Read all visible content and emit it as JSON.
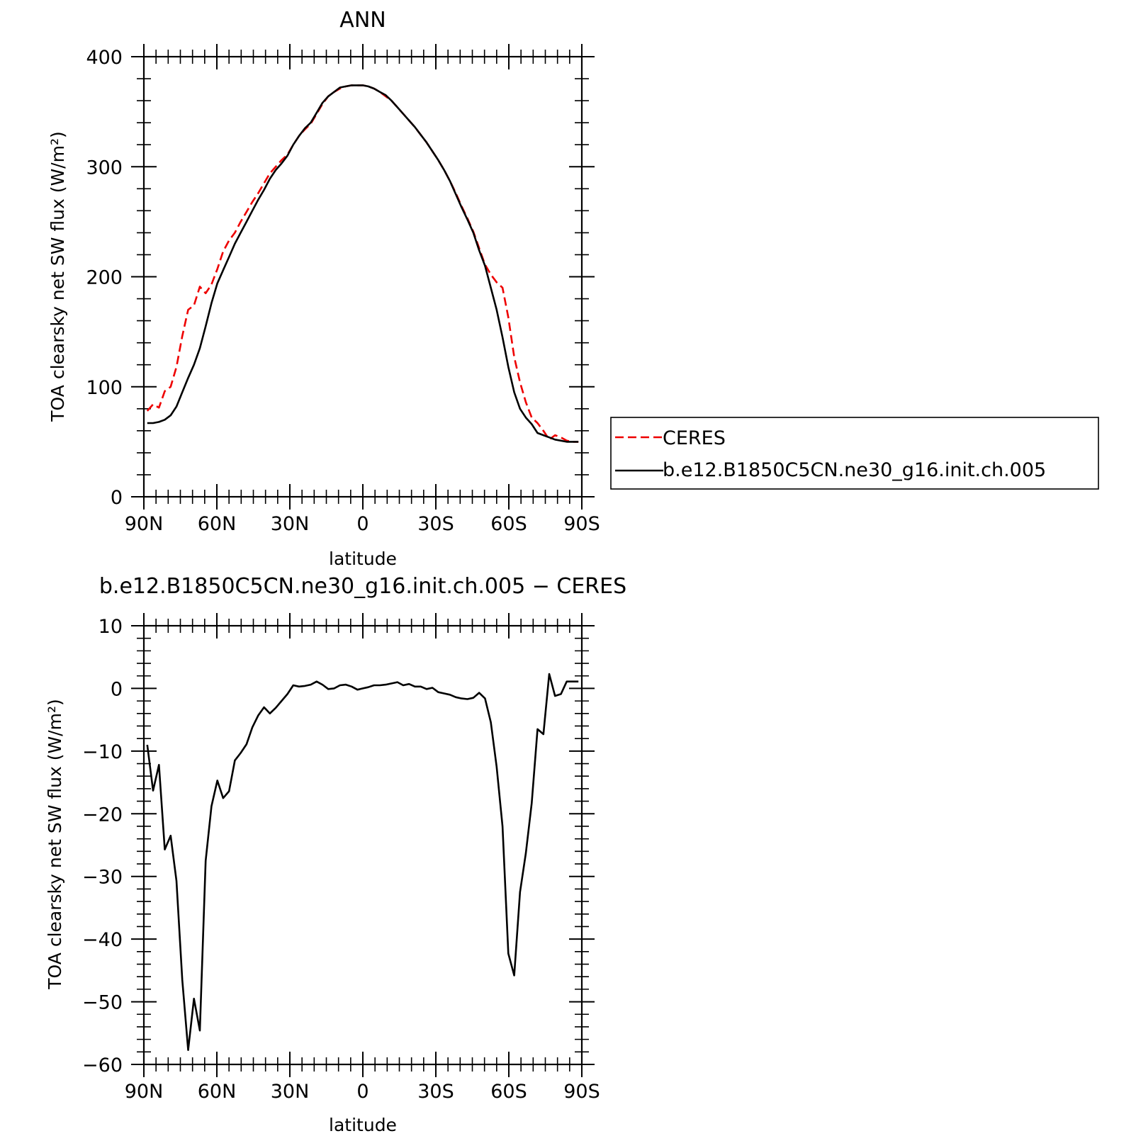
{
  "chart_data": [
    {
      "type": "line",
      "title": "ANN",
      "xlabel": "latitude",
      "ylabel": "TOA clearsky net SW flux (W/m²)",
      "ylim": [
        0,
        400
      ],
      "yticks": [
        0,
        100,
        200,
        300,
        400
      ],
      "xlim": [
        90,
        -90
      ],
      "xticks": [
        90,
        60,
        30,
        0,
        -30,
        -60,
        -90
      ],
      "xtick_labels": [
        "90N",
        "60N",
        "30N",
        "0",
        "30S",
        "60S",
        "90S"
      ],
      "legend_position": "right",
      "series": [
        {
          "name": "CERES",
          "color": "#ee0000",
          "dash": "dashed",
          "x": [
            88.6,
            86.2,
            83.8,
            81.4,
            79.0,
            76.6,
            74.2,
            71.8,
            69.4,
            67.0,
            64.6,
            62.2,
            59.8,
            57.4,
            55.0,
            52.6,
            50.2,
            47.8,
            45.4,
            43.0,
            40.6,
            38.2,
            35.8,
            33.4,
            31.0,
            28.6,
            26.2,
            23.8,
            21.4,
            19.0,
            16.6,
            14.2,
            11.8,
            9.4,
            7.0,
            4.6,
            2.2,
            0.0,
            -2.2,
            -4.6,
            -7.0,
            -9.4,
            -11.8,
            -14.2,
            -16.6,
            -19.0,
            -21.4,
            -23.8,
            -26.2,
            -28.6,
            -31.0,
            -33.4,
            -35.8,
            -38.2,
            -40.6,
            -43.0,
            -45.4,
            -47.8,
            -50.2,
            -52.6,
            -55.0,
            -57.4,
            -59.8,
            -62.2,
            -64.6,
            -67.0,
            -69.4,
            -71.8,
            -74.2,
            -76.6,
            -79.0,
            -81.4,
            -83.8,
            -86.2,
            -88.6
          ],
          "y": [
            78,
            84,
            81,
            96,
            100,
            118,
            146,
            170,
            174,
            191,
            185,
            193,
            207,
            223,
            233,
            240,
            250,
            259,
            268,
            276,
            285,
            294,
            300,
            306,
            311,
            320,
            328,
            334,
            339,
            348,
            357,
            364,
            368,
            371,
            373,
            374,
            374,
            374,
            373,
            371,
            368,
            364,
            360,
            354,
            348,
            342,
            336,
            329,
            322,
            314,
            306,
            297,
            287,
            276,
            264,
            253,
            241,
            226,
            211,
            202,
            195,
            190,
            163,
            127,
            104,
            86,
            72,
            67,
            60,
            52,
            56,
            54,
            51,
            50,
            50
          ]
        },
        {
          "name": "b.e12.B1850C5CN.ne30_g16.init.ch.005",
          "color": "#000000",
          "dash": "solid",
          "x": [
            88.6,
            86.2,
            83.8,
            81.4,
            79.0,
            76.6,
            74.2,
            71.8,
            69.4,
            67.0,
            64.6,
            62.2,
            59.8,
            57.4,
            55.0,
            52.6,
            50.2,
            47.8,
            45.4,
            43.0,
            40.6,
            38.2,
            35.8,
            33.4,
            31.0,
            28.6,
            26.2,
            23.8,
            21.4,
            19.0,
            16.6,
            14.2,
            11.8,
            9.4,
            7.0,
            4.6,
            2.2,
            0.0,
            -2.2,
            -4.6,
            -7.0,
            -9.4,
            -11.8,
            -14.2,
            -16.6,
            -19.0,
            -21.4,
            -23.8,
            -26.2,
            -28.6,
            -31.0,
            -33.4,
            -35.8,
            -38.2,
            -40.6,
            -43.0,
            -45.4,
            -47.8,
            -50.2,
            -52.6,
            -55.0,
            -57.4,
            -59.8,
            -62.2,
            -64.6,
            -67.0,
            -69.4,
            -71.8,
            -74.2,
            -76.6,
            -79.0,
            -81.4,
            -83.8,
            -86.2,
            -88.6
          ],
          "y": [
            67,
            67,
            68,
            70,
            74,
            82,
            95,
            108,
            120,
            135,
            155,
            176,
            194,
            206,
            218,
            230,
            240,
            250,
            260,
            270,
            279,
            289,
            297,
            303,
            310,
            320,
            328,
            335,
            340,
            349,
            358,
            364,
            368,
            372,
            373,
            374,
            374,
            374,
            373,
            371,
            368,
            365,
            360,
            354,
            348,
            342,
            336,
            329,
            322,
            314,
            306,
            297,
            287,
            275,
            263,
            252,
            240,
            224,
            210,
            190,
            170,
            145,
            118,
            95,
            80,
            72,
            66,
            58,
            56,
            54,
            52,
            51,
            50,
            50,
            50
          ]
        }
      ]
    },
    {
      "type": "line",
      "title": "b.e12.B1850C5CN.ne30_g16.init.ch.005 − CERES",
      "xlabel": "latitude",
      "ylabel": "TOA clearsky net SW flux (W/m²)",
      "ylim": [
        -60,
        10
      ],
      "yticks": [
        -60,
        -50,
        -40,
        -30,
        -20,
        -10,
        0,
        10
      ],
      "ytick_labels": [
        "−60",
        "−50",
        "−40",
        "−30",
        "−20",
        "−10",
        "0",
        "10"
      ],
      "xlim": [
        90,
        -90
      ],
      "xticks": [
        90,
        60,
        30,
        0,
        -30,
        -60,
        -90
      ],
      "xtick_labels": [
        "90N",
        "60N",
        "30N",
        "0",
        "30S",
        "60S",
        "90S"
      ],
      "series": [
        {
          "color": "#000000",
          "dash": "solid",
          "x": [
            88.6,
            86.2,
            83.8,
            81.4,
            79.0,
            76.6,
            74.2,
            71.8,
            69.4,
            67.0,
            64.6,
            62.2,
            59.8,
            57.4,
            55.0,
            52.6,
            50.2,
            47.8,
            45.4,
            43.0,
            40.6,
            38.2,
            35.8,
            33.4,
            31.0,
            28.6,
            26.2,
            23.8,
            21.4,
            19.0,
            16.6,
            14.2,
            11.8,
            9.4,
            7.0,
            4.6,
            2.2,
            0.0,
            -2.2,
            -4.6,
            -7.0,
            -9.4,
            -11.8,
            -14.2,
            -16.6,
            -19.0,
            -21.4,
            -23.8,
            -26.2,
            -28.6,
            -31.0,
            -33.4,
            -35.8,
            -38.2,
            -40.6,
            -43.0,
            -45.4,
            -47.8,
            -50.2,
            -52.6,
            -55.0,
            -57.4,
            -59.8,
            -62.2,
            -64.6,
            -67.0,
            -69.4,
            -71.8,
            -74.2,
            -76.6,
            -79.0,
            -81.4,
            -83.8,
            -86.2,
            -88.6
          ],
          "y": [
            -9,
            -16.3,
            -12.2,
            -25.7,
            -23.5,
            -30.7,
            -46.5,
            -57.7,
            -49.5,
            -54.6,
            -27.5,
            -18.8,
            -14.7,
            -17.5,
            -16.4,
            -11.5,
            -10.3,
            -8.9,
            -6.2,
            -4.3,
            -3.0,
            -4.0,
            -3.1,
            -2.0,
            -0.9,
            0.5,
            0.3,
            0.4,
            0.6,
            1.1,
            0.6,
            -0.1,
            0.0,
            0.5,
            0.6,
            0.3,
            -0.2,
            0.0,
            0.2,
            0.5,
            0.5,
            0.6,
            0.8,
            1.0,
            0.5,
            0.7,
            0.3,
            0.3,
            -0.1,
            0.1,
            -0.6,
            -0.8,
            -1.0,
            -1.4,
            -1.6,
            -1.7,
            -1.5,
            -0.7,
            -1.6,
            -5.4,
            -12.5,
            -22.0,
            -42.3,
            -45.8,
            -32.5,
            -26.3,
            -18.3,
            -6.5,
            -7.3,
            2.3,
            -1.2,
            -0.9,
            1.1,
            1.1,
            1.1
          ]
        }
      ]
    }
  ]
}
